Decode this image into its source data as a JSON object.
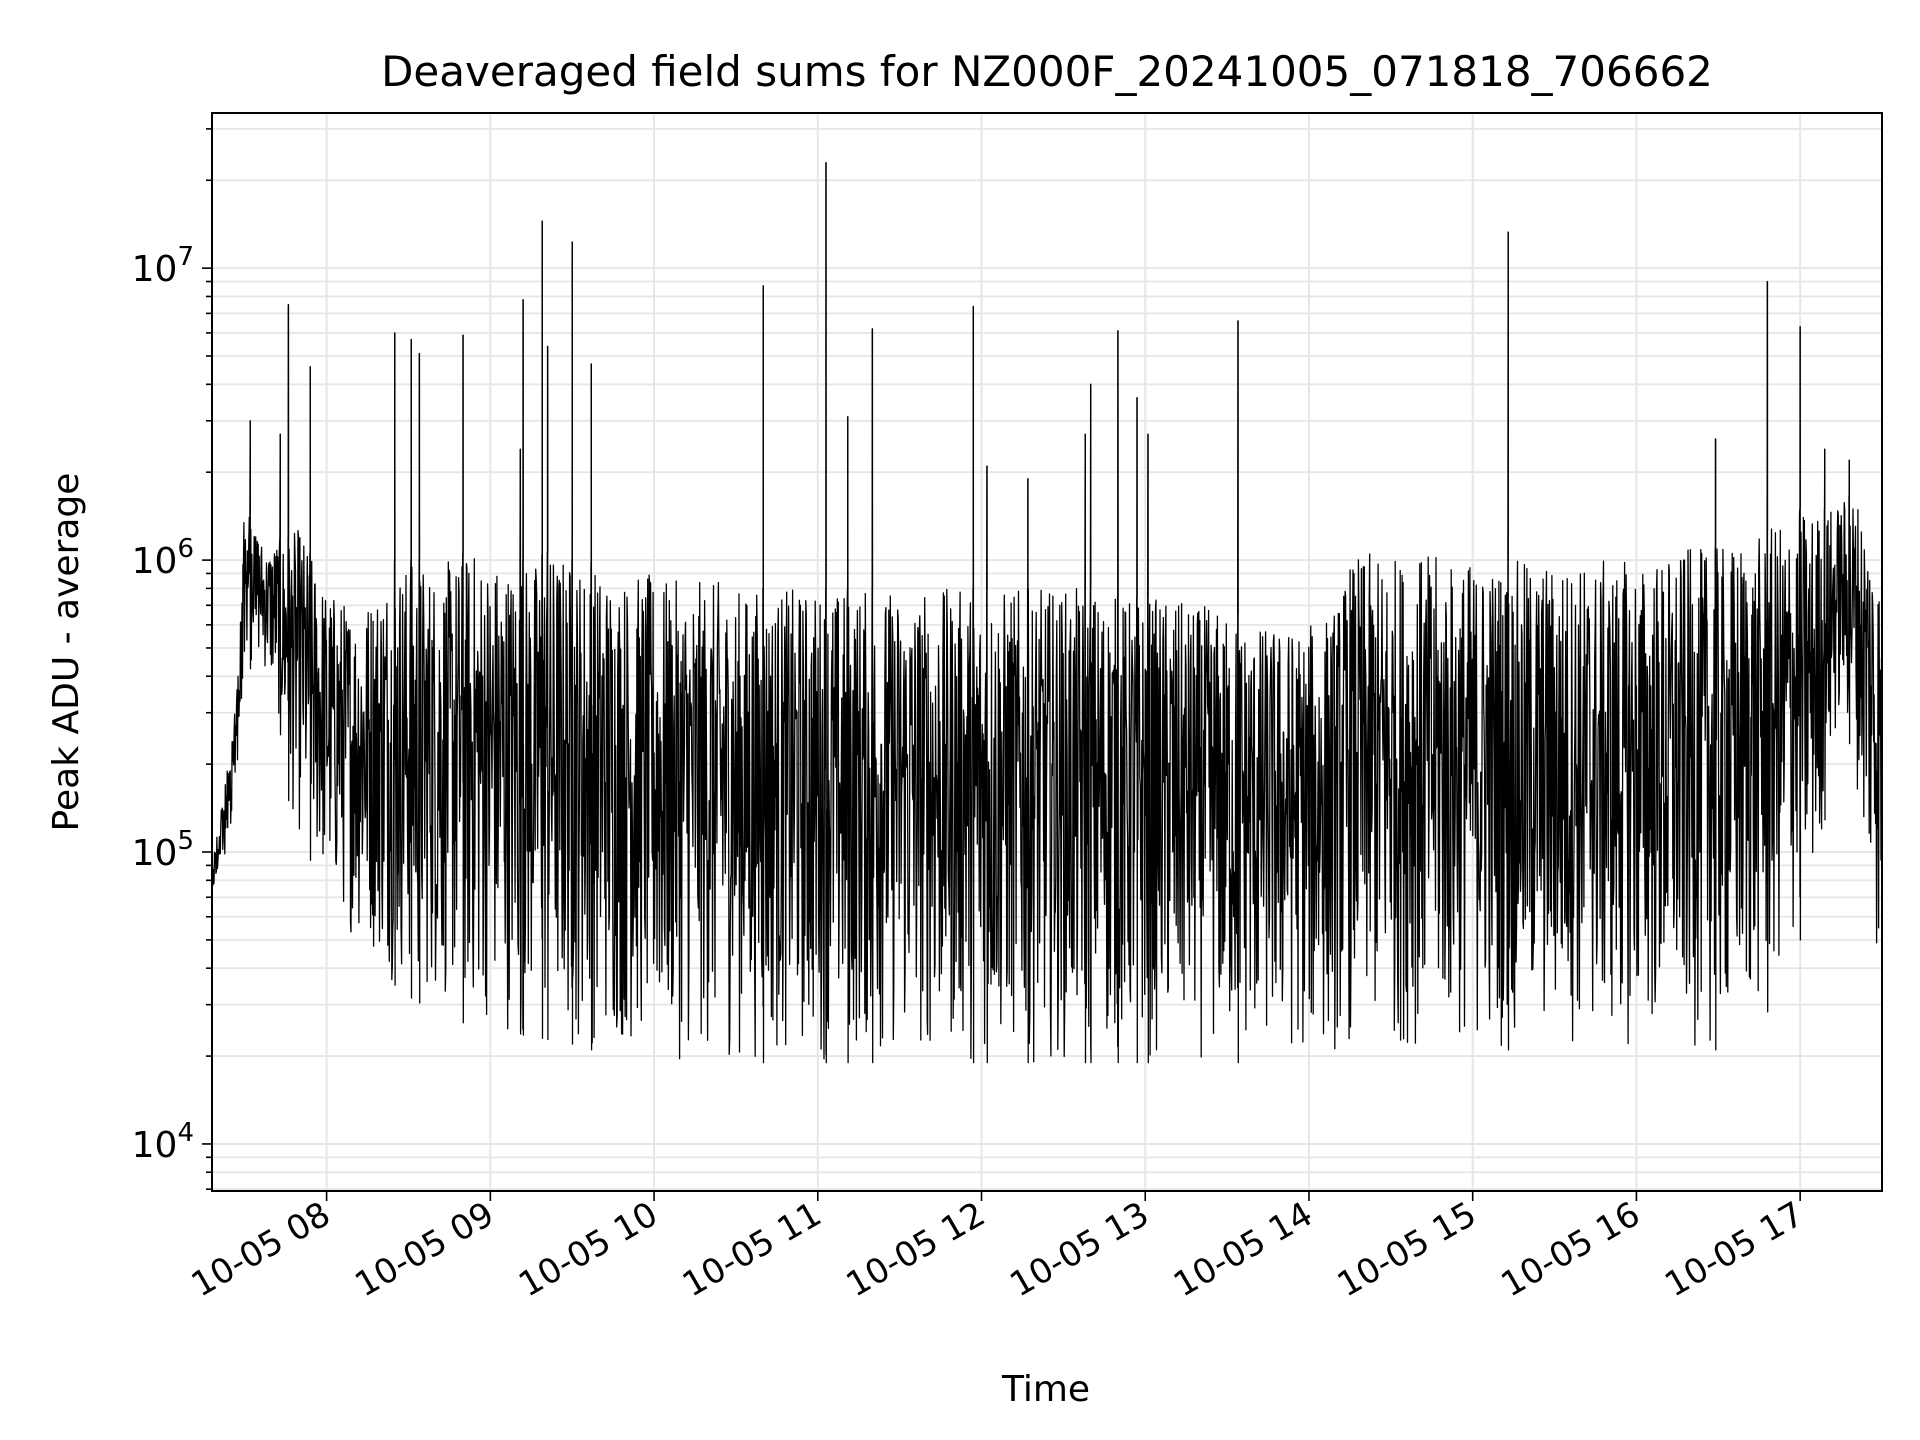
{
  "chart_data": {
    "type": "line",
    "title": "Deaveraged field sums for NZ000F_20241005_071818_706662",
    "xlabel": "Time",
    "ylabel": "Peak ADU - average",
    "xlim": [
      "10-05 07:18",
      "10-05 17:30"
    ],
    "ylim": [
      6900,
      34000000
    ],
    "yscale": "log",
    "grid": true,
    "line_color": "#000000",
    "grid_color": "#e6e6e6",
    "x_ticks": [
      {
        "value": "10-05 08:00",
        "label": "10-05 08"
      },
      {
        "value": "10-05 09:00",
        "label": "10-05 09"
      },
      {
        "value": "10-05 10:00",
        "label": "10-05 10"
      },
      {
        "value": "10-05 11:00",
        "label": "10-05 11"
      },
      {
        "value": "10-05 12:00",
        "label": "10-05 12"
      },
      {
        "value": "10-05 13:00",
        "label": "10-05 13"
      },
      {
        "value": "10-05 14:00",
        "label": "10-05 14"
      },
      {
        "value": "10-05 15:00",
        "label": "10-05 15"
      },
      {
        "value": "10-05 16:00",
        "label": "10-05 16"
      },
      {
        "value": "10-05 17:00",
        "label": "10-05 17"
      }
    ],
    "y_ticks": [
      {
        "value": 10000,
        "base": "10",
        "exp": "4"
      },
      {
        "value": 100000,
        "base": "10",
        "exp": "5"
      },
      {
        "value": 1000000,
        "base": "10",
        "exp": "6"
      },
      {
        "value": 10000000,
        "base": "10",
        "exp": "7"
      }
    ],
    "series": [
      {
        "x": [
          "10-05 07:18",
          "10-05 07:22",
          "10-05 07:26",
          "10-05 07:30",
          "10-05 07:34",
          "10-05 07:38",
          "10-05 07:42",
          "10-05 07:46",
          "10-05 07:50",
          "10-05 07:55",
          "10-05 08:00",
          "10-05 08:05",
          "10-05 08:10",
          "10-05 08:15",
          "10-05 08:20",
          "10-05 08:25",
          "10-05 08:30",
          "10-05 08:35",
          "10-05 08:40",
          "10-05 08:45",
          "10-05 08:50",
          "10-05 08:55",
          "10-05 09:00",
          "10-05 09:05",
          "10-05 09:10",
          "10-05 09:15",
          "10-05 09:20",
          "10-05 09:25",
          "10-05 09:30",
          "10-05 09:35",
          "10-05 09:40",
          "10-05 09:45",
          "10-05 09:50",
          "10-05 09:55",
          "10-05 10:00",
          "10-05 10:05",
          "10-05 10:10",
          "10-05 10:15",
          "10-05 10:20",
          "10-05 10:25",
          "10-05 10:30",
          "10-05 10:35",
          "10-05 10:40",
          "10-05 10:45",
          "10-05 10:50",
          "10-05 10:55",
          "10-05 11:00",
          "10-05 11:05",
          "10-05 11:10",
          "10-05 11:15",
          "10-05 11:20",
          "10-05 11:25",
          "10-05 11:30",
          "10-05 11:35",
          "10-05 11:40",
          "10-05 11:45",
          "10-05 11:50",
          "10-05 11:55",
          "10-05 12:00",
          "10-05 12:05",
          "10-05 12:10",
          "10-05 12:15",
          "10-05 12:20",
          "10-05 12:25",
          "10-05 12:30",
          "10-05 12:35",
          "10-05 12:40",
          "10-05 12:45",
          "10-05 12:50",
          "10-05 12:55",
          "10-05 13:00",
          "10-05 13:05",
          "10-05 13:10",
          "10-05 13:15",
          "10-05 13:20",
          "10-05 13:25",
          "10-05 13:30",
          "10-05 13:35",
          "10-05 13:40",
          "10-05 13:45",
          "10-05 13:50",
          "10-05 13:55",
          "10-05 14:00",
          "10-05 14:05",
          "10-05 14:10",
          "10-05 14:15",
          "10-05 14:20",
          "10-05 14:25",
          "10-05 14:30",
          "10-05 14:35",
          "10-05 14:40",
          "10-05 14:45",
          "10-05 14:50",
          "10-05 14:55",
          "10-05 15:00",
          "10-05 15:05",
          "10-05 15:10",
          "10-05 15:15",
          "10-05 15:20",
          "10-05 15:25",
          "10-05 15:30",
          "10-05 15:35",
          "10-05 15:40",
          "10-05 15:45",
          "10-05 15:50",
          "10-05 15:55",
          "10-05 16:00",
          "10-05 16:05",
          "10-05 16:10",
          "10-05 16:15",
          "10-05 16:20",
          "10-05 16:25",
          "10-05 16:30",
          "10-05 16:35",
          "10-05 16:40",
          "10-05 16:45",
          "10-05 16:50",
          "10-05 16:55",
          "10-05 17:00",
          "10-05 17:05",
          "10-05 17:10",
          "10-05 17:15",
          "10-05 17:20",
          "10-05 17:25",
          "10-05 17:30"
        ],
        "envelope_low": [
          70000,
          90000,
          140000,
          400000,
          450000,
          400000,
          300000,
          150000,
          110000,
          90000,
          70000,
          60000,
          50000,
          45000,
          40000,
          35000,
          32000,
          30000,
          30000,
          28000,
          26000,
          25000,
          25000,
          24000,
          24000,
          23000,
          23000,
          22000,
          22000,
          21000,
          21000,
          20000,
          20000,
          20000,
          19000,
          19000,
          19000,
          19000,
          19000,
          19000,
          19000,
          19000,
          19000,
          19000,
          19000,
          19000,
          19000,
          19000,
          19000,
          19000,
          19000,
          19000,
          19000,
          19000,
          19000,
          19000,
          19000,
          19000,
          19000,
          19000,
          19000,
          19000,
          19000,
          19000,
          19000,
          19000,
          19000,
          19000,
          19000,
          19000,
          19000,
          19000,
          19000,
          19000,
          19000,
          19000,
          19000,
          19000,
          19000,
          19000,
          19000,
          19000,
          19000,
          19500,
          20000,
          21000,
          21000,
          21000,
          21000,
          21000,
          21000,
          21000,
          21000,
          21000,
          21000,
          21000,
          21000,
          21000,
          21000,
          21000,
          21000,
          21000,
          21000,
          21000,
          21000,
          21000,
          21000,
          21000,
          21000,
          21000,
          21000,
          21000,
          21000,
          22000,
          24000,
          26000,
          30000,
          40000,
          50000,
          70000,
          150000,
          300000,
          200000,
          70000,
          30000
        ],
        "envelope_high": [
          90000,
          150000,
          280000,
          1600000,
          1300000,
          1100000,
          1200000,
          1200000,
          1300000,
          1000000,
          800000,
          750000,
          700000,
          750000,
          900000,
          1000000,
          1000000,
          1000000,
          950000,
          1000000,
          1050000,
          1100000,
          1050000,
          1000000,
          1000000,
          1000000,
          1050000,
          1100000,
          1000000,
          1000000,
          950000,
          950000,
          900000,
          900000,
          900000,
          850000,
          850000,
          850000,
          850000,
          850000,
          800000,
          800000,
          800000,
          800000,
          800000,
          800000,
          800000,
          800000,
          800000,
          800000,
          800000,
          800000,
          800000,
          800000,
          800000,
          800000,
          800000,
          800000,
          800000,
          800000,
          800000,
          800000,
          800000,
          800000,
          800000,
          800000,
          800000,
          800000,
          750000,
          750000,
          750000,
          750000,
          750000,
          700000,
          700000,
          700000,
          650000,
          650000,
          600000,
          600000,
          600000,
          600000,
          600000,
          650000,
          700000,
          1000000,
          1050000,
          1050000,
          1050000,
          1050000,
          1050000,
          1050000,
          1000000,
          1000000,
          1000000,
          1000000,
          1000000,
          1000000,
          1000000,
          1000000,
          1000000,
          1000000,
          1000000,
          1000000,
          1000000,
          1000000,
          1000000,
          1000000,
          1050000,
          1050000,
          1100000,
          1100000,
          1100000,
          1150000,
          1200000,
          1200000,
          1300000,
          1400000,
          1500000,
          1500000,
          1500000,
          1600000,
          1700000,
          1400000,
          900000,
          400000,
          100000
        ],
        "spikes": [
          {
            "x": "10-05 07:32",
            "y": 3000000
          },
          {
            "x": "10-05 07:43",
            "y": 2700000
          },
          {
            "x": "10-05 07:46",
            "y": 7500000
          },
          {
            "x": "10-05 07:54",
            "y": 4600000
          },
          {
            "x": "10-05 08:25",
            "y": 6000000
          },
          {
            "x": "10-05 08:31",
            "y": 5700000
          },
          {
            "x": "10-05 08:34",
            "y": 5100000
          },
          {
            "x": "10-05 08:50",
            "y": 5900000
          },
          {
            "x": "10-05 09:11",
            "y": 2400000
          },
          {
            "x": "10-05 09:12",
            "y": 7800000
          },
          {
            "x": "10-05 09:19",
            "y": 14500000
          },
          {
            "x": "10-05 09:21",
            "y": 5400000
          },
          {
            "x": "10-05 09:30",
            "y": 12300000
          },
          {
            "x": "10-05 09:37",
            "y": 4700000
          },
          {
            "x": "10-05 10:40",
            "y": 8700000
          },
          {
            "x": "10-05 11:03",
            "y": 23000000
          },
          {
            "x": "10-05 11:11",
            "y": 3100000
          },
          {
            "x": "10-05 11:20",
            "y": 6200000
          },
          {
            "x": "10-05 11:57",
            "y": 7400000
          },
          {
            "x": "10-05 12:02",
            "y": 2100000
          },
          {
            "x": "10-05 12:17",
            "y": 1900000
          },
          {
            "x": "10-05 12:38",
            "y": 2700000
          },
          {
            "x": "10-05 12:40",
            "y": 4000000
          },
          {
            "x": "10-05 12:50",
            "y": 6100000
          },
          {
            "x": "10-05 12:57",
            "y": 3600000
          },
          {
            "x": "10-05 13:01",
            "y": 2700000
          },
          {
            "x": "10-05 13:34",
            "y": 6600000
          },
          {
            "x": "10-05 15:13",
            "y": 13300000
          },
          {
            "x": "10-05 16:29",
            "y": 2600000
          },
          {
            "x": "10-05 16:48",
            "y": 9000000
          },
          {
            "x": "10-05 17:00",
            "y": 6300000
          },
          {
            "x": "10-05 17:09",
            "y": 2400000
          },
          {
            "x": "10-05 17:18",
            "y": 2200000
          }
        ]
      }
    ]
  }
}
